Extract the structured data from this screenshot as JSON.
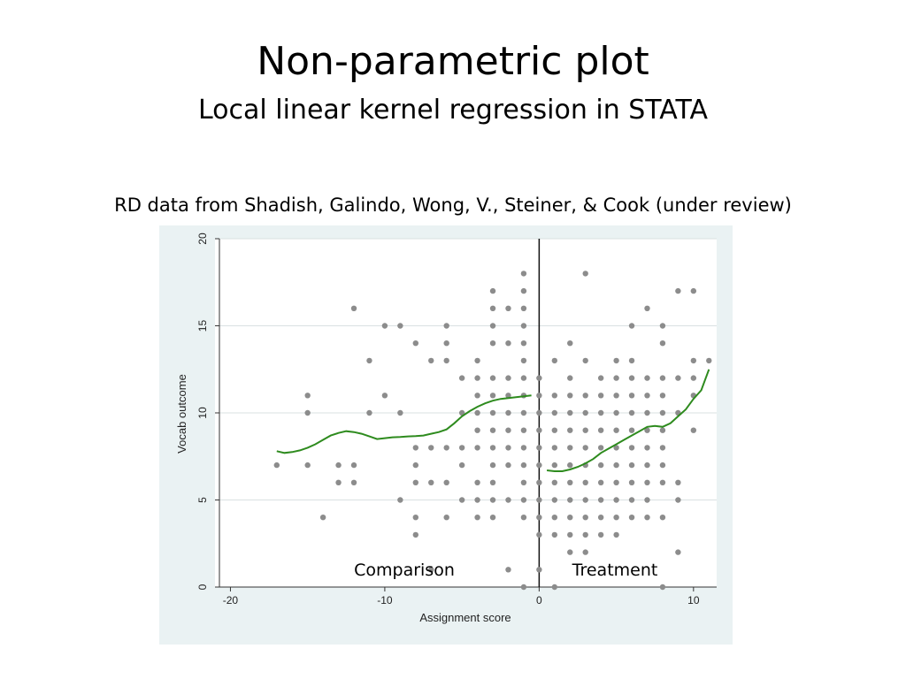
{
  "slide": {
    "title": "Non-parametric plot",
    "subtitle": "Local linear kernel regression in STATA",
    "caption": "RD data from Shadish, Galindo, Wong, V., Steiner, & Cook (under review)"
  },
  "chart_data": {
    "type": "scatter",
    "xlabel": "Assignment score",
    "ylabel": "Vocab outcome",
    "xlim": [
      -21,
      11.5
    ],
    "ylim": [
      0,
      20
    ],
    "x_ticks": [
      -20,
      -10,
      0,
      10
    ],
    "y_ticks": [
      0,
      5,
      10,
      15,
      20
    ],
    "grid": "horizontal",
    "cutoff": 0,
    "region_labels": [
      {
        "text": "Comparison",
        "x": -8.5,
        "y": 0.5
      },
      {
        "text": "Treatment",
        "x": 5,
        "y": 0.5
      }
    ],
    "colors": {
      "points": "#8c8c8c",
      "fit": "#2e8b1e",
      "plot_background": "#eaf2f3",
      "grid": "#d9e1e2"
    },
    "points": [
      [
        -17,
        7
      ],
      [
        -15,
        11
      ],
      [
        -15,
        10
      ],
      [
        -15,
        7
      ],
      [
        -14,
        4
      ],
      [
        -13,
        7
      ],
      [
        -13,
        6
      ],
      [
        -12,
        16
      ],
      [
        -12,
        7
      ],
      [
        -12,
        6
      ],
      [
        -11,
        13
      ],
      [
        -11,
        10
      ],
      [
        -10,
        15
      ],
      [
        -10,
        11
      ],
      [
        -9,
        15
      ],
      [
        -9,
        10
      ],
      [
        -9,
        5
      ],
      [
        -8,
        14
      ],
      [
        -8,
        8
      ],
      [
        -8,
        7
      ],
      [
        -8,
        6
      ],
      [
        -8,
        4
      ],
      [
        -8,
        3
      ],
      [
        -7,
        13
      ],
      [
        -7,
        8
      ],
      [
        -7,
        6
      ],
      [
        -7,
        1
      ],
      [
        -6,
        15
      ],
      [
        -6,
        14
      ],
      [
        -6,
        13
      ],
      [
        -6,
        8
      ],
      [
        -6,
        6
      ],
      [
        -6,
        4
      ],
      [
        -5,
        12
      ],
      [
        -5,
        10
      ],
      [
        -5,
        8
      ],
      [
        -5,
        7
      ],
      [
        -5,
        5
      ],
      [
        -4,
        13
      ],
      [
        -4,
        12
      ],
      [
        -4,
        11
      ],
      [
        -4,
        10
      ],
      [
        -4,
        9
      ],
      [
        -4,
        8
      ],
      [
        -4,
        6
      ],
      [
        -4,
        5
      ],
      [
        -4,
        4
      ],
      [
        -3,
        17
      ],
      [
        -3,
        16
      ],
      [
        -3,
        15
      ],
      [
        -3,
        14
      ],
      [
        -3,
        12
      ],
      [
        -3,
        11
      ],
      [
        -3,
        10
      ],
      [
        -3,
        9
      ],
      [
        -3,
        8
      ],
      [
        -3,
        7
      ],
      [
        -3,
        6
      ],
      [
        -3,
        5
      ],
      [
        -3,
        4
      ],
      [
        -2,
        16
      ],
      [
        -2,
        14
      ],
      [
        -2,
        12
      ],
      [
        -2,
        11
      ],
      [
        -2,
        10
      ],
      [
        -2,
        9
      ],
      [
        -2,
        8
      ],
      [
        -2,
        7
      ],
      [
        -2,
        5
      ],
      [
        -2,
        1
      ],
      [
        -1,
        18
      ],
      [
        -1,
        17
      ],
      [
        -1,
        16
      ],
      [
        -1,
        15
      ],
      [
        -1,
        14
      ],
      [
        -1,
        13
      ],
      [
        -1,
        12
      ],
      [
        -1,
        11
      ],
      [
        -1,
        10
      ],
      [
        -1,
        9
      ],
      [
        -1,
        8
      ],
      [
        -1,
        7
      ],
      [
        -1,
        6
      ],
      [
        -1,
        5
      ],
      [
        -1,
        4
      ],
      [
        -1,
        0
      ],
      [
        0,
        12
      ],
      [
        0,
        11
      ],
      [
        0,
        10
      ],
      [
        0,
        9
      ],
      [
        0,
        8
      ],
      [
        0,
        7
      ],
      [
        0,
        6
      ],
      [
        0,
        5
      ],
      [
        0,
        4
      ],
      [
        0,
        3
      ],
      [
        0,
        1
      ],
      [
        1,
        13
      ],
      [
        1,
        11
      ],
      [
        1,
        10
      ],
      [
        1,
        9
      ],
      [
        1,
        8
      ],
      [
        1,
        7
      ],
      [
        1,
        6
      ],
      [
        1,
        5
      ],
      [
        1,
        4
      ],
      [
        1,
        3
      ],
      [
        1,
        0
      ],
      [
        2,
        14
      ],
      [
        2,
        12
      ],
      [
        2,
        11
      ],
      [
        2,
        10
      ],
      [
        2,
        9
      ],
      [
        2,
        8
      ],
      [
        2,
        7
      ],
      [
        2,
        6
      ],
      [
        2,
        5
      ],
      [
        2,
        4
      ],
      [
        2,
        3
      ],
      [
        2,
        2
      ],
      [
        3,
        18
      ],
      [
        3,
        13
      ],
      [
        3,
        11
      ],
      [
        3,
        10
      ],
      [
        3,
        9
      ],
      [
        3,
        8
      ],
      [
        3,
        7
      ],
      [
        3,
        6
      ],
      [
        3,
        5
      ],
      [
        3,
        4
      ],
      [
        3,
        3
      ],
      [
        3,
        2
      ],
      [
        4,
        12
      ],
      [
        4,
        11
      ],
      [
        4,
        10
      ],
      [
        4,
        9
      ],
      [
        4,
        8
      ],
      [
        4,
        7
      ],
      [
        4,
        6
      ],
      [
        4,
        5
      ],
      [
        4,
        4
      ],
      [
        4,
        3
      ],
      [
        5,
        13
      ],
      [
        5,
        12
      ],
      [
        5,
        11
      ],
      [
        5,
        10
      ],
      [
        5,
        9
      ],
      [
        5,
        8
      ],
      [
        5,
        7
      ],
      [
        5,
        6
      ],
      [
        5,
        5
      ],
      [
        5,
        4
      ],
      [
        5,
        3
      ],
      [
        6,
        15
      ],
      [
        6,
        13
      ],
      [
        6,
        12
      ],
      [
        6,
        11
      ],
      [
        6,
        10
      ],
      [
        6,
        9
      ],
      [
        6,
        8
      ],
      [
        6,
        7
      ],
      [
        6,
        6
      ],
      [
        6,
        5
      ],
      [
        6,
        4
      ],
      [
        7,
        16
      ],
      [
        7,
        12
      ],
      [
        7,
        11
      ],
      [
        7,
        10
      ],
      [
        7,
        9
      ],
      [
        7,
        8
      ],
      [
        7,
        7
      ],
      [
        7,
        6
      ],
      [
        7,
        5
      ],
      [
        7,
        4
      ],
      [
        8,
        15
      ],
      [
        8,
        14
      ],
      [
        8,
        12
      ],
      [
        8,
        11
      ],
      [
        8,
        10
      ],
      [
        8,
        9
      ],
      [
        8,
        8
      ],
      [
        8,
        7
      ],
      [
        8,
        6
      ],
      [
        8,
        4
      ],
      [
        8,
        0
      ],
      [
        9,
        17
      ],
      [
        9,
        12
      ],
      [
        9,
        10
      ],
      [
        9,
        6
      ],
      [
        9,
        5
      ],
      [
        9,
        2
      ],
      [
        10,
        17
      ],
      [
        10,
        13
      ],
      [
        10,
        12
      ],
      [
        10,
        11
      ],
      [
        10,
        9
      ],
      [
        11,
        13
      ]
    ],
    "series": [
      {
        "type": "line",
        "x": [
          -17,
          -16.5,
          -16,
          -15.5,
          -15,
          -14.5,
          -14,
          -13.5,
          -13,
          -12.5,
          -12,
          -11.5,
          -11,
          -10.5,
          -10,
          -9.5,
          -9,
          -8.5,
          -8,
          -7.5,
          -7,
          -6.5,
          -6,
          -5.5,
          -5,
          -4.5,
          -4,
          -3.5,
          -3,
          -2.5,
          -2,
          -1.5,
          -1,
          -0.5
        ],
        "y": [
          7.8,
          7.7,
          7.75,
          7.85,
          8.0,
          8.2,
          8.45,
          8.7,
          8.85,
          8.95,
          8.9,
          8.8,
          8.65,
          8.5,
          8.55,
          8.6,
          8.62,
          8.65,
          8.67,
          8.7,
          8.8,
          8.9,
          9.05,
          9.4,
          9.8,
          10.1,
          10.35,
          10.55,
          10.7,
          10.8,
          10.85,
          10.9,
          10.95,
          11.0
        ]
      },
      {
        "type": "line",
        "x": [
          0.5,
          1,
          1.5,
          2,
          2.5,
          3,
          3.5,
          4,
          4.5,
          5,
          5.5,
          6,
          6.5,
          7,
          7.5,
          8,
          8.5,
          9,
          9.5,
          10,
          10.5,
          11
        ],
        "y": [
          6.7,
          6.65,
          6.65,
          6.75,
          6.9,
          7.1,
          7.35,
          7.7,
          7.95,
          8.2,
          8.45,
          8.7,
          8.95,
          9.2,
          9.25,
          9.2,
          9.4,
          9.8,
          10.2,
          10.8,
          11.3,
          12.5
        ]
      }
    ]
  }
}
